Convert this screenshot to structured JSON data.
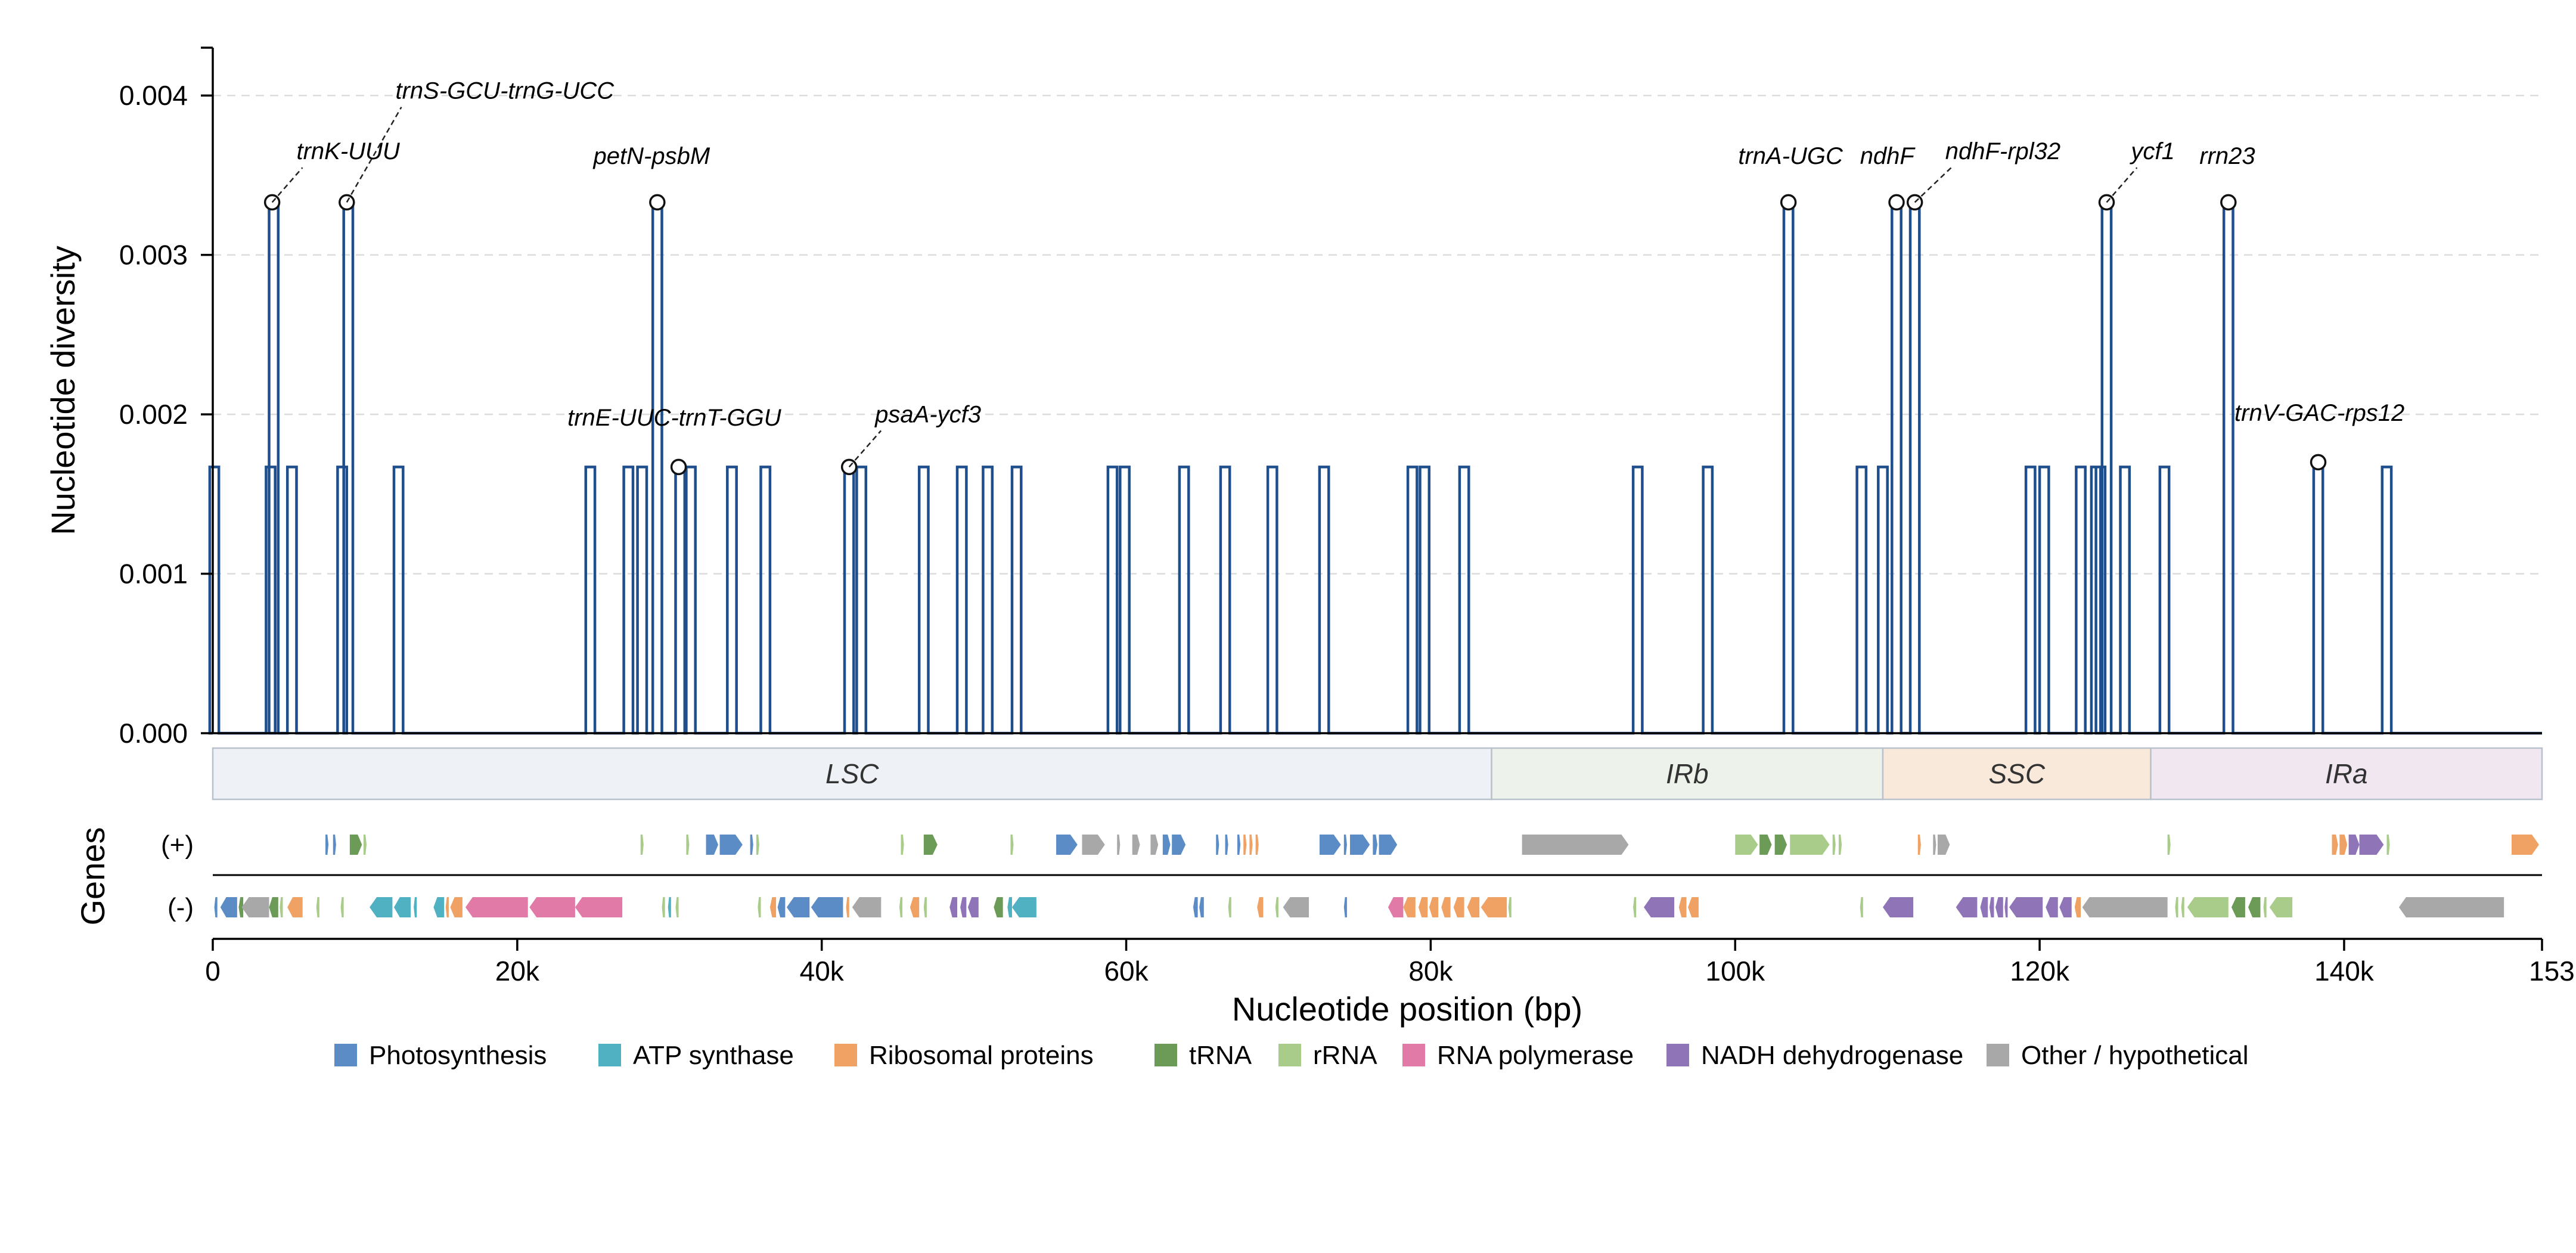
{
  "chart_data": {
    "type": "line",
    "ylabel": "Nucleotide diversity",
    "xlabel": "Nucleotide position (bp)",
    "xlim": [
      0,
      153000
    ],
    "ylim": [
      0,
      0.0043
    ],
    "y_ticks": [
      0,
      0.001,
      0.002,
      0.003,
      0.004
    ],
    "y_tick_labels": [
      "0.000",
      "0.001",
      "0.002",
      "0.003",
      "0.004"
    ],
    "x_ticks": [
      0,
      20000,
      40000,
      60000,
      80000,
      100000,
      120000,
      140000,
      153000
    ],
    "x_tick_labels": [
      "0",
      "20k",
      "40k",
      "60k",
      "80k",
      "100k",
      "120k",
      "140k",
      "153k"
    ],
    "grid": "horizontal dashed",
    "line_color": "#1f4e8c",
    "peak_width_bp": 600,
    "peaks": [
      [
        100,
        0.00167
      ],
      [
        3800,
        0.00167
      ],
      [
        4000,
        0.00333
      ],
      [
        5200,
        0.00167
      ],
      [
        8500,
        0.00167
      ],
      [
        8900,
        0.00333
      ],
      [
        12200,
        0.00167
      ],
      [
        24800,
        0.00167
      ],
      [
        27300,
        0.00167
      ],
      [
        28200,
        0.00167
      ],
      [
        29200,
        0.00333
      ],
      [
        30700,
        0.00167
      ],
      [
        31400,
        0.00167
      ],
      [
        34100,
        0.00167
      ],
      [
        36300,
        0.00167
      ],
      [
        41800,
        0.00167
      ],
      [
        42600,
        0.00167
      ],
      [
        46700,
        0.00167
      ],
      [
        49200,
        0.00167
      ],
      [
        50900,
        0.00167
      ],
      [
        52800,
        0.00167
      ],
      [
        59100,
        0.00167
      ],
      [
        59900,
        0.00167
      ],
      [
        63800,
        0.00167
      ],
      [
        66500,
        0.00167
      ],
      [
        69600,
        0.00167
      ],
      [
        73000,
        0.00167
      ],
      [
        78800,
        0.00167
      ],
      [
        79600,
        0.00167
      ],
      [
        82200,
        0.00167
      ],
      [
        93600,
        0.00167
      ],
      [
        98200,
        0.00167
      ],
      [
        103500,
        0.00333
      ],
      [
        108300,
        0.00167
      ],
      [
        109700,
        0.00167
      ],
      [
        110600,
        0.00333
      ],
      [
        111800,
        0.00333
      ],
      [
        119400,
        0.00167
      ],
      [
        120300,
        0.00167
      ],
      [
        122700,
        0.00167
      ],
      [
        123700,
        0.00167
      ],
      [
        124000,
        0.00167
      ],
      [
        124400,
        0.00333
      ],
      [
        125600,
        0.00167
      ],
      [
        128200,
        0.00167
      ],
      [
        132400,
        0.00333
      ],
      [
        138300,
        0.00167
      ],
      [
        142800,
        0.00167
      ]
    ],
    "annotations": [
      {
        "label": "trnK-UUU",
        "x": 3900,
        "y": 0.00333,
        "text_x": 5500,
        "text_y": 0.0036,
        "leader": true
      },
      {
        "label": "trnS-GCU-trnG-UCC",
        "x": 8800,
        "y": 0.00333,
        "text_x": 12000,
        "text_y": 0.00398,
        "leader": true
      },
      {
        "label": "petN-psbM",
        "x": 29200,
        "y": 0.00333,
        "text_x": 25000,
        "text_y": 0.00357,
        "leader": false
      },
      {
        "label": "trnE-UUC-trnT-GGU",
        "x": 30600,
        "y": 0.00167,
        "text_x": 23300,
        "text_y": 0.00193,
        "leader": false
      },
      {
        "label": "psaA-ycf3",
        "x": 41800,
        "y": 0.00167,
        "text_x": 43500,
        "text_y": 0.00195,
        "leader": true
      },
      {
        "label": "trnA-UGC",
        "x": 103500,
        "y": 0.00333,
        "text_x": 100200,
        "text_y": 0.00357,
        "leader": false
      },
      {
        "label": "ndhF",
        "x": 110600,
        "y": 0.00333,
        "text_x": 108200,
        "text_y": 0.00357,
        "leader": false
      },
      {
        "label": "ndhF-rpl32",
        "x": 111800,
        "y": 0.00333,
        "text_x": 113800,
        "text_y": 0.0036,
        "leader": true
      },
      {
        "label": "ycf1",
        "x": 124400,
        "y": 0.00333,
        "text_x": 126000,
        "text_y": 0.0036,
        "leader": true
      },
      {
        "label": "rrn23",
        "x": 132400,
        "y": 0.00333,
        "text_x": 130500,
        "text_y": 0.00357,
        "leader": false
      },
      {
        "label": "trnV-GAC-rps12",
        "x": 138300,
        "y": 0.0017,
        "text_x": 132800,
        "text_y": 0.00196,
        "leader": false
      }
    ],
    "regions": [
      {
        "label": "LSC",
        "start": 0,
        "end": 84000,
        "color": "#eef2f6"
      },
      {
        "label": "IRb",
        "start": 84000,
        "end": 109700,
        "color": "#edf3ea"
      },
      {
        "label": "SSC",
        "start": 109700,
        "end": 127300,
        "color": "#f8e9da"
      },
      {
        "label": "IRa",
        "start": 127300,
        "end": 153000,
        "color": "#f1e7f1"
      }
    ],
    "genes_axis_label": "Genes",
    "strand_labels": [
      "(+)",
      "(-)"
    ],
    "legend": [
      {
        "label": "Photosynthesis",
        "color": "#5b8cc6"
      },
      {
        "label": "ATP synthase",
        "color": "#4fb1c2"
      },
      {
        "label": "Ribosomal proteins",
        "color": "#f0a265"
      },
      {
        "label": "tRNA",
        "color": "#6c9a57"
      },
      {
        "label": "rRNA",
        "color": "#a9cc8b"
      },
      {
        "label": "RNA polymerase",
        "color": "#e27aa8"
      },
      {
        "label": "NADH dehydrogenase",
        "color": "#8f74b8"
      },
      {
        "label": "Other / hypothetical",
        "color": "#a8a8a8"
      }
    ],
    "genes": [
      {
        "s": 7400,
        "e": 7600,
        "str": "+",
        "c": 0
      },
      {
        "s": 7900,
        "e": 8100,
        "str": "+",
        "c": 0
      },
      {
        "s": 9000,
        "e": 9800,
        "str": "+",
        "c": 3
      },
      {
        "s": 9900,
        "e": 10100,
        "str": "+",
        "c": 4
      },
      {
        "s": 28100,
        "e": 28300,
        "str": "+",
        "c": 4
      },
      {
        "s": 31100,
        "e": 31300,
        "str": "+",
        "c": 4
      },
      {
        "s": 32400,
        "e": 33200,
        "str": "+",
        "c": 0
      },
      {
        "s": 33300,
        "e": 34800,
        "str": "+",
        "c": 0
      },
      {
        "s": 35300,
        "e": 35500,
        "str": "+",
        "c": 0
      },
      {
        "s": 35700,
        "e": 35900,
        "str": "+",
        "c": 4
      },
      {
        "s": 45200,
        "e": 45400,
        "str": "+",
        "c": 4
      },
      {
        "s": 46700,
        "e": 47600,
        "str": "+",
        "c": 3
      },
      {
        "s": 52400,
        "e": 52600,
        "str": "+",
        "c": 4
      },
      {
        "s": 55400,
        "e": 56800,
        "str": "+",
        "c": 0
      },
      {
        "s": 57100,
        "e": 58600,
        "str": "+",
        "c": 7
      },
      {
        "s": 59400,
        "e": 59600,
        "str": "+",
        "c": 7
      },
      {
        "s": 60400,
        "e": 60900,
        "str": "+",
        "c": 7
      },
      {
        "s": 61600,
        "e": 62100,
        "str": "+",
        "c": 7
      },
      {
        "s": 62400,
        "e": 62900,
        "str": "+",
        "c": 0
      },
      {
        "s": 63000,
        "e": 63900,
        "str": "+",
        "c": 0
      },
      {
        "s": 65900,
        "e": 66100,
        "str": "+",
        "c": 0
      },
      {
        "s": 66500,
        "e": 66700,
        "str": "+",
        "c": 0
      },
      {
        "s": 67300,
        "e": 67500,
        "str": "+",
        "c": 0
      },
      {
        "s": 67700,
        "e": 67900,
        "str": "+",
        "c": 2
      },
      {
        "s": 68100,
        "e": 68300,
        "str": "+",
        "c": 2
      },
      {
        "s": 68500,
        "e": 68700,
        "str": "+",
        "c": 2
      },
      {
        "s": 72700,
        "e": 74100,
        "str": "+",
        "c": 0
      },
      {
        "s": 74300,
        "e": 74500,
        "str": "+",
        "c": 0
      },
      {
        "s": 74700,
        "e": 76000,
        "str": "+",
        "c": 0
      },
      {
        "s": 76200,
        "e": 76500,
        "str": "+",
        "c": 0
      },
      {
        "s": 76600,
        "e": 77800,
        "str": "+",
        "c": 0
      },
      {
        "s": 86000,
        "e": 93000,
        "str": "+",
        "c": 7
      },
      {
        "s": 100000,
        "e": 101500,
        "str": "+",
        "c": 4
      },
      {
        "s": 101600,
        "e": 102400,
        "str": "+",
        "c": 3
      },
      {
        "s": 102600,
        "e": 103400,
        "str": "+",
        "c": 3
      },
      {
        "s": 103600,
        "e": 106200,
        "str": "+",
        "c": 4
      },
      {
        "s": 106400,
        "e": 106600,
        "str": "+",
        "c": 4
      },
      {
        "s": 106800,
        "e": 107000,
        "str": "+",
        "c": 4
      },
      {
        "s": 112000,
        "e": 112200,
        "str": "+",
        "c": 2
      },
      {
        "s": 113000,
        "e": 113200,
        "str": "+",
        "c": 7
      },
      {
        "s": 113300,
        "e": 114100,
        "str": "+",
        "c": 7
      },
      {
        "s": 128400,
        "e": 128600,
        "str": "+",
        "c": 4
      },
      {
        "s": 139200,
        "e": 139600,
        "str": "+",
        "c": 2
      },
      {
        "s": 139700,
        "e": 140200,
        "str": "+",
        "c": 2
      },
      {
        "s": 140300,
        "e": 141000,
        "str": "+",
        "c": 6
      },
      {
        "s": 141000,
        "e": 142600,
        "str": "+",
        "c": 6
      },
      {
        "s": 142800,
        "e": 143000,
        "str": "+",
        "c": 4
      },
      {
        "s": 151000,
        "e": 152800,
        "str": "+",
        "c": 2
      },
      {
        "s": 100,
        "e": 300,
        "str": "-",
        "c": 0
      },
      {
        "s": 500,
        "e": 1600,
        "str": "-",
        "c": 0
      },
      {
        "s": 1700,
        "e": 2000,
        "str": "-",
        "c": 3
      },
      {
        "s": 1900,
        "e": 3700,
        "str": "-",
        "c": 7
      },
      {
        "s": 3700,
        "e": 4300,
        "str": "-",
        "c": 3
      },
      {
        "s": 4400,
        "e": 4600,
        "str": "-",
        "c": 4
      },
      {
        "s": 4900,
        "e": 5900,
        "str": "-",
        "c": 2
      },
      {
        "s": 6800,
        "e": 7000,
        "str": "-",
        "c": 4
      },
      {
        "s": 8400,
        "e": 8600,
        "str": "-",
        "c": 4
      },
      {
        "s": 10300,
        "e": 11800,
        "str": "-",
        "c": 1
      },
      {
        "s": 11900,
        "e": 13000,
        "str": "-",
        "c": 1
      },
      {
        "s": 13200,
        "e": 13400,
        "str": "-",
        "c": 1
      },
      {
        "s": 14500,
        "e": 15200,
        "str": "-",
        "c": 1
      },
      {
        "s": 15300,
        "e": 15500,
        "str": "-",
        "c": 2
      },
      {
        "s": 15600,
        "e": 16400,
        "str": "-",
        "c": 2
      },
      {
        "s": 16600,
        "e": 20700,
        "str": "-",
        "c": 5
      },
      {
        "s": 20800,
        "e": 23800,
        "str": "-",
        "c": 5
      },
      {
        "s": 23800,
        "e": 26900,
        "str": "-",
        "c": 5
      },
      {
        "s": 29500,
        "e": 29700,
        "str": "-",
        "c": 4
      },
      {
        "s": 29900,
        "e": 30100,
        "str": "-",
        "c": 1
      },
      {
        "s": 30400,
        "e": 30600,
        "str": "-",
        "c": 4
      },
      {
        "s": 35800,
        "e": 36000,
        "str": "-",
        "c": 4
      },
      {
        "s": 36600,
        "e": 37000,
        "str": "-",
        "c": 2
      },
      {
        "s": 37100,
        "e": 37600,
        "str": "-",
        "c": 0
      },
      {
        "s": 37700,
        "e": 39200,
        "str": "-",
        "c": 0
      },
      {
        "s": 39300,
        "e": 41400,
        "str": "-",
        "c": 0
      },
      {
        "s": 41600,
        "e": 41800,
        "str": "-",
        "c": 2
      },
      {
        "s": 42000,
        "e": 43900,
        "str": "-",
        "c": 7
      },
      {
        "s": 45100,
        "e": 45300,
        "str": "-",
        "c": 4
      },
      {
        "s": 45800,
        "e": 46400,
        "str": "-",
        "c": 2
      },
      {
        "s": 46700,
        "e": 46900,
        "str": "-",
        "c": 4
      },
      {
        "s": 48400,
        "e": 48900,
        "str": "-",
        "c": 6
      },
      {
        "s": 49100,
        "e": 49500,
        "str": "-",
        "c": 6
      },
      {
        "s": 49600,
        "e": 50300,
        "str": "-",
        "c": 6
      },
      {
        "s": 51300,
        "e": 51900,
        "str": "-",
        "c": 3
      },
      {
        "s": 52200,
        "e": 52500,
        "str": "-",
        "c": 1
      },
      {
        "s": 52500,
        "e": 54100,
        "str": "-",
        "c": 1
      },
      {
        "s": 64400,
        "e": 64700,
        "str": "-",
        "c": 0
      },
      {
        "s": 64800,
        "e": 65100,
        "str": "-",
        "c": 0
      },
      {
        "s": 66700,
        "e": 66900,
        "str": "-",
        "c": 4
      },
      {
        "s": 68600,
        "e": 69000,
        "str": "-",
        "c": 2
      },
      {
        "s": 69800,
        "e": 70000,
        "str": "-",
        "c": 4
      },
      {
        "s": 70300,
        "e": 72000,
        "str": "-",
        "c": 7
      },
      {
        "s": 74300,
        "e": 74500,
        "str": "-",
        "c": 0
      },
      {
        "s": 77200,
        "e": 78200,
        "str": "-",
        "c": 5
      },
      {
        "s": 78200,
        "e": 79000,
        "str": "-",
        "c": 2
      },
      {
        "s": 79200,
        "e": 79800,
        "str": "-",
        "c": 2
      },
      {
        "s": 79900,
        "e": 80500,
        "str": "-",
        "c": 2
      },
      {
        "s": 80700,
        "e": 81300,
        "str": "-",
        "c": 2
      },
      {
        "s": 81500,
        "e": 82200,
        "str": "-",
        "c": 2
      },
      {
        "s": 82400,
        "e": 83200,
        "str": "-",
        "c": 2
      },
      {
        "s": 83300,
        "e": 85000,
        "str": "-",
        "c": 2
      },
      {
        "s": 85100,
        "e": 85300,
        "str": "-",
        "c": 4
      },
      {
        "s": 93300,
        "e": 93500,
        "str": "-",
        "c": 4
      },
      {
        "s": 94000,
        "e": 96000,
        "str": "-",
        "c": 6
      },
      {
        "s": 96300,
        "e": 96800,
        "str": "-",
        "c": 2
      },
      {
        "s": 96900,
        "e": 97600,
        "str": "-",
        "c": 2
      },
      {
        "s": 108200,
        "e": 108400,
        "str": "-",
        "c": 4
      },
      {
        "s": 109700,
        "e": 111700,
        "str": "-",
        "c": 6
      },
      {
        "s": 114500,
        "e": 115900,
        "str": "-",
        "c": 6
      },
      {
        "s": 116100,
        "e": 116600,
        "str": "-",
        "c": 6
      },
      {
        "s": 116700,
        "e": 117000,
        "str": "-",
        "c": 6
      },
      {
        "s": 117100,
        "e": 117600,
        "str": "-",
        "c": 6
      },
      {
        "s": 117700,
        "e": 117900,
        "str": "-",
        "c": 6
      },
      {
        "s": 118000,
        "e": 120200,
        "str": "-",
        "c": 6
      },
      {
        "s": 120400,
        "e": 121200,
        "str": "-",
        "c": 6
      },
      {
        "s": 121300,
        "e": 122100,
        "str": "-",
        "c": 6
      },
      {
        "s": 122300,
        "e": 122700,
        "str": "-",
        "c": 2
      },
      {
        "s": 122800,
        "e": 128400,
        "str": "-",
        "c": 7
      },
      {
        "s": 128900,
        "e": 129100,
        "str": "-",
        "c": 4
      },
      {
        "s": 129300,
        "e": 129500,
        "str": "-",
        "c": 4
      },
      {
        "s": 129700,
        "e": 132400,
        "str": "-",
        "c": 4
      },
      {
        "s": 132600,
        "e": 133500,
        "str": "-",
        "c": 3
      },
      {
        "s": 133700,
        "e": 134500,
        "str": "-",
        "c": 3
      },
      {
        "s": 134700,
        "e": 134900,
        "str": "-",
        "c": 4
      },
      {
        "s": 135100,
        "e": 136600,
        "str": "-",
        "c": 4
      },
      {
        "s": 143600,
        "e": 150500,
        "str": "-",
        "c": 7
      }
    ]
  }
}
